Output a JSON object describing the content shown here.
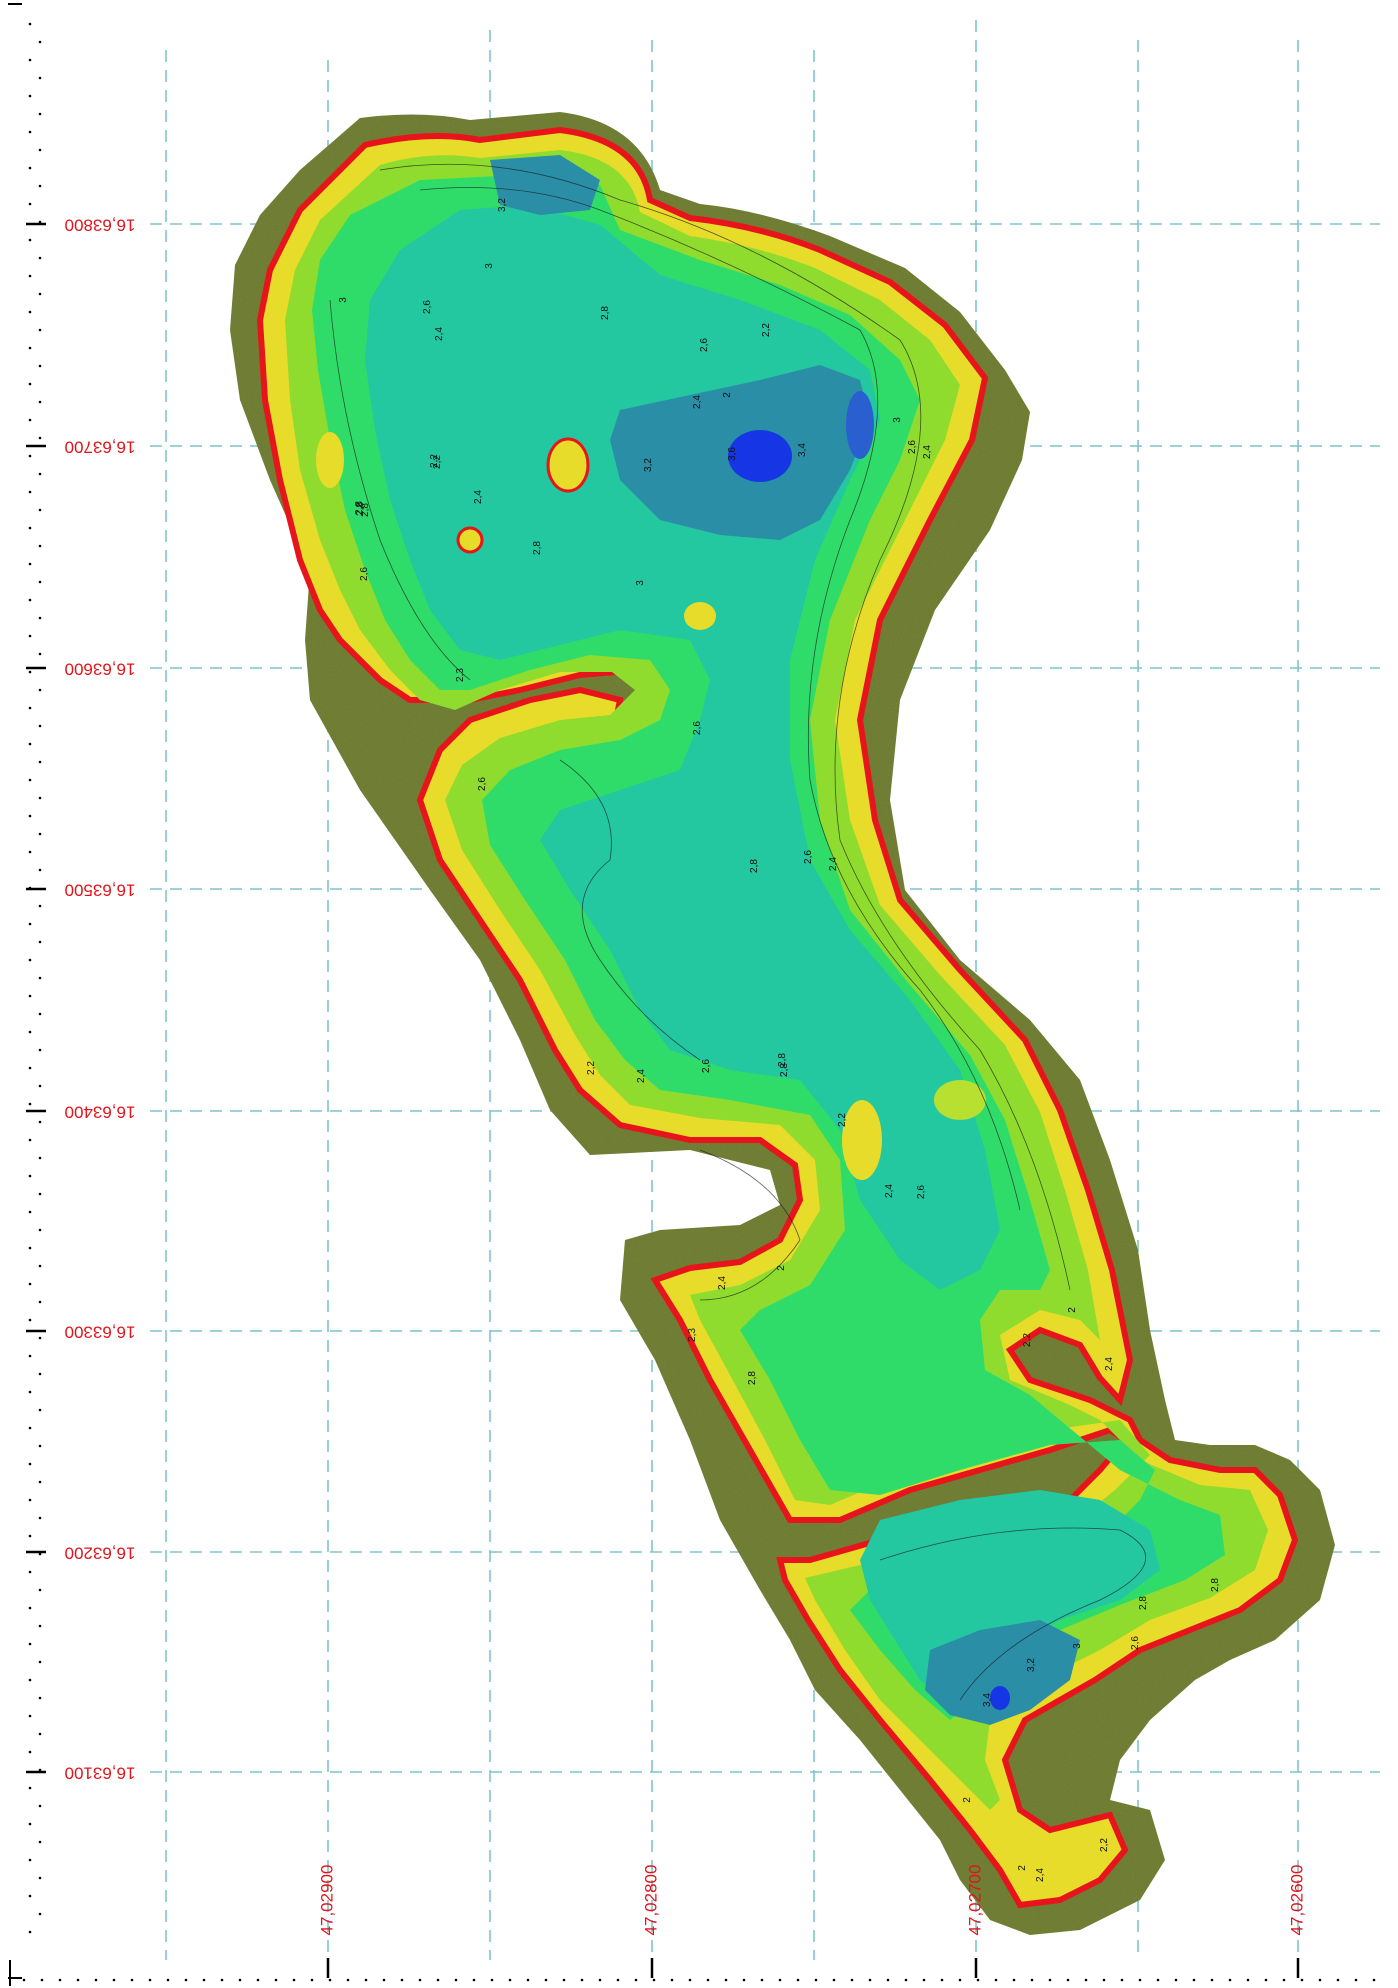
{
  "map": {
    "latitude_ticks": [
      "16,63800",
      "16,63700",
      "16,63600",
      "16,63500",
      "16,63400",
      "16,63300",
      "16,63200",
      "16,63100"
    ],
    "longitude_ticks": [
      "47,02900",
      "47,02800",
      "47,02700",
      "47,02600"
    ],
    "contour_labels": [
      "3,2",
      "3",
      "2,6",
      "2,4",
      "2,8",
      "3",
      "2,6",
      "2,2",
      "2,4",
      "2",
      "2,2",
      "2,8",
      "3",
      "2,6",
      "2,4",
      "2,8",
      "3,2",
      "3,6",
      "3,4",
      "2,2",
      "2,4",
      "2,8",
      "2,8",
      "2,6",
      "3",
      "2,6",
      "2,3",
      "2,6",
      "2,8",
      "2,6",
      "2,4",
      "2,8",
      "2,2",
      "2,4",
      "2,6",
      "2,8",
      "2,2",
      "2,4",
      "2,6",
      "2,4",
      "2",
      "2,3",
      "2,8",
      "2,2",
      "2",
      "2,4",
      "2,8",
      "2,6",
      "2,8",
      "3",
      "3,2",
      "3,4",
      "2",
      "2",
      "2,4",
      "2,2"
    ],
    "colors": {
      "shore_band": "#6b7a2c",
      "shoreline": "#e8141b",
      "shallow": "#e7dc2a",
      "mid_shallow": "#8fdc2f",
      "mid": "#2fdc6a",
      "mid_deep": "#23c7a0",
      "deep": "#2a8fa6",
      "deepest": "#1636e6",
      "grid": "#7fc3cf",
      "tick_text": "#e0141b"
    }
  }
}
